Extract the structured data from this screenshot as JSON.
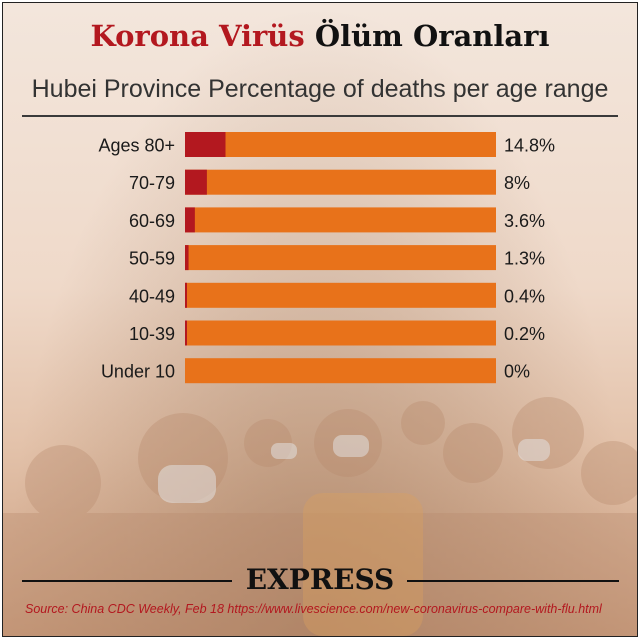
{
  "header": {
    "title_part1": "Korona Virüs",
    "title_part2": "Ölüm Oranları",
    "subtitle": "Hubei Province Percentage of deaths per age range"
  },
  "colors": {
    "bar_track": "#e8721a",
    "bar_fill": "#b3181f",
    "title_accent": "#b3181f"
  },
  "chart_data": {
    "type": "bar",
    "orientation": "horizontal",
    "title": "Hubei Province Percentage of deaths per age range",
    "categories": [
      "Ages 80+",
      "70-79",
      "60-69",
      "50-59",
      "40-49",
      "10-39",
      "Under 10"
    ],
    "values": [
      14.8,
      8,
      3.6,
      1.3,
      0.4,
      0.2,
      0
    ],
    "value_labels": [
      "14.8%",
      "8%",
      "3.6%",
      "1.3%",
      "0.4%",
      "0.2%",
      "0%"
    ],
    "xlim": [
      0,
      100
    ],
    "unit": "%",
    "grid": false,
    "legend": "none"
  },
  "footer": {
    "brand": "EXPRESS",
    "source": "Source: China CDC Weekly, Feb 18 https://www.livescience.com/new-coronavirus-compare-with-flu.html"
  }
}
